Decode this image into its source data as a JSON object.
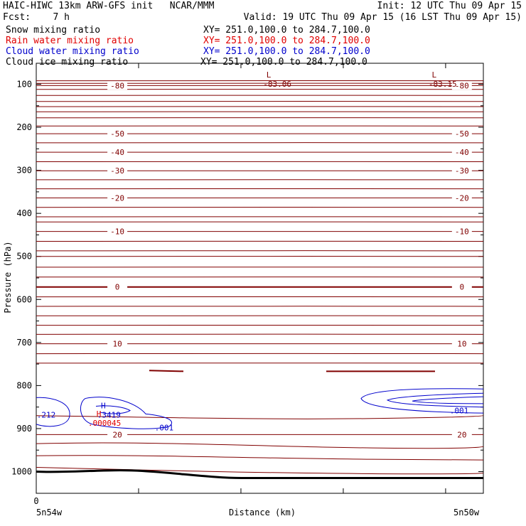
{
  "header": {
    "line1_left": "HAIC-HIWC 13km ARW-GFS init   NCAR/MMM",
    "line1_right": "Init: 12 UTC Thu 09 Apr 15",
    "line2_left": "Fcst:    7 h",
    "line2_right": "Valid: 19 UTC Thu 09 Apr 15 (16 LST Thu 09 Apr 15)"
  },
  "fields": [
    {
      "name": "Snow mixing ratio",
      "xy": "XY= 251.0,100.0 to 284.7,100.0",
      "color": "#000000"
    },
    {
      "name": "Rain water mixing ratio",
      "xy": "XY= 251.0,100.0 to 284.7,100.0",
      "color": "#e00000"
    },
    {
      "name": "Cloud water mixing ratio",
      "xy": "XY= 251.0,100.0 to 284.7,100.0",
      "color": "#0000cc"
    },
    {
      "name": "Cloud ice mixing ratio",
      "xy": "XY= 251.0,100.0 to 284.7,100.0",
      "color": "#000000"
    }
  ],
  "chart_data": {
    "type": "contour",
    "ylabel": "Pressure (hPa)",
    "xlabel": "Distance (km)",
    "y_ticks": [
      100,
      200,
      300,
      400,
      500,
      600,
      700,
      800,
      900,
      1000
    ],
    "x_ticks": [
      "0"
    ],
    "x_end_labels": {
      "left": "5n54w",
      "right": "5n50w"
    },
    "temperature_contours": [
      {
        "value": -80,
        "label": "-80",
        "pressure": 103
      },
      {
        "value": -50,
        "label": "-50",
        "pressure": 215
      },
      {
        "value": -40,
        "label": "-40",
        "pressure": 258
      },
      {
        "value": -30,
        "label": "-30",
        "pressure": 301
      },
      {
        "value": -20,
        "label": "-20",
        "pressure": 364
      },
      {
        "value": -10,
        "label": "-10",
        "pressure": 442
      },
      {
        "value": 0,
        "label": "0",
        "pressure": 571
      },
      {
        "value": 10,
        "label": "10",
        "pressure": 703
      },
      {
        "value": 20,
        "label": "20",
        "pressure": 914
      }
    ],
    "extrema": [
      {
        "type": "L",
        "value": "-83.06",
        "x_frac": 0.52,
        "pressure": 84
      },
      {
        "type": "L",
        "value": "-83.15",
        "x_frac": 0.89,
        "pressure": 84
      },
      {
        "type": "H",
        "value": ".3419",
        "x_frac": 0.15,
        "pressure": 853,
        "color": "#0000cc"
      },
      {
        "type": "H",
        "value": ".000045",
        "x_frac": 0.14,
        "pressure": 872,
        "color": "#e00000"
      }
    ],
    "other_labels": [
      {
        "text": ".212",
        "x_frac": 0.0,
        "pressure": 868,
        "color": "#0000cc"
      },
      {
        "text": ".001",
        "x_frac": 0.27,
        "pressure": 898,
        "color": "#0000cc"
      },
      {
        "text": ".001",
        "x_frac": 0.93,
        "pressure": 858,
        "color": "#0000cc"
      }
    ],
    "colors": {
      "temperature": "#800000",
      "cloud_water": "#0000cc",
      "rain": "#e00000",
      "terrain": "#000000"
    }
  }
}
